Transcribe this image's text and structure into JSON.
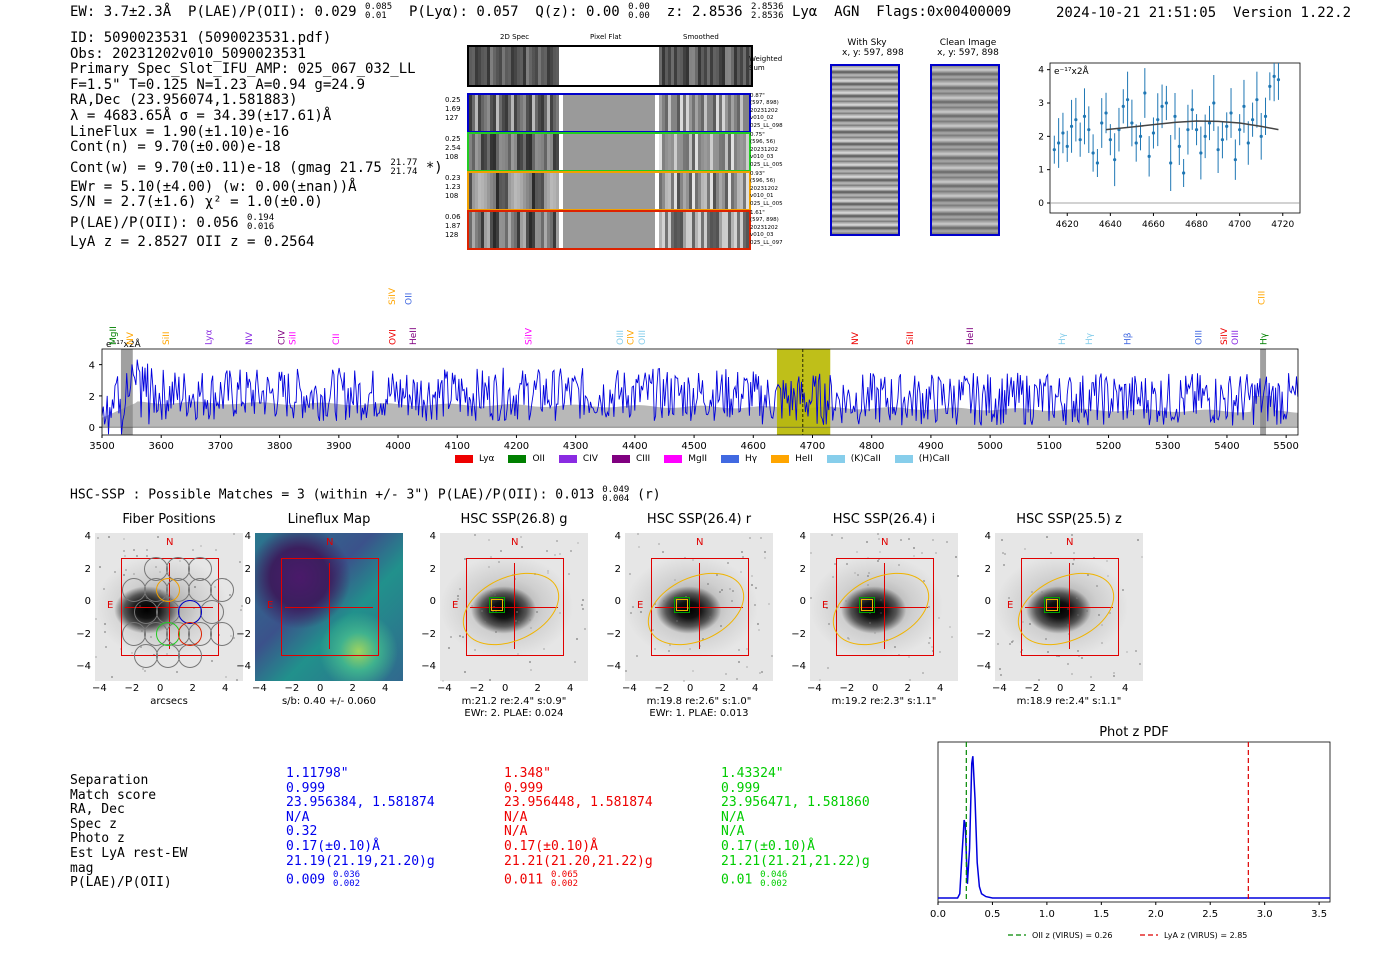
{
  "header": {
    "ew": "EW: 3.7±2.3Å",
    "plae_label": "P(LAE)/P(OII): 0.029",
    "plae_hi": "0.085",
    "plae_lo": "0.01",
    "plya": "P(Lyα): 0.057",
    "qz_label": "Q(z): 0.00",
    "qz_hi": "0.00",
    "qz_lo": "0.00",
    "z_label": "z: 2.8536",
    "z_hi": "2.8536",
    "z_lo": "2.8536",
    "line": "Lyα",
    "agn": "AGN",
    "flags": "Flags:0x00400009",
    "timestamp": "2024-10-21 21:51:05",
    "version": "Version 1.22.2"
  },
  "info": {
    "id": "ID: 5090023531 (5090023531.pdf)",
    "obs": "Obs: 20231202v010_5090023531",
    "primary": "Primary Spec_Slot_IFU_AMP: 025_067_032_LL",
    "params": "F=1.5\"  T=0.125  N=1.23  A=0.94  g=24.9",
    "radec": "RA,Dec (23.956074,1.581883)",
    "lambda_sigma": "λ = 4683.65Å  σ = 34.39(±17.61)Å",
    "lineflux": "LineFlux = 1.90(±1.10)e-16",
    "contn": "Cont(n) = 9.70(±0.00)e-18",
    "contw": "Cont(w) = 9.70(±0.11)e-18 (gmag 21.75",
    "contw_hi": "21.77",
    "contw_lo": "21.74",
    "contw_end": "*)",
    "ewr": "EWr = 5.10(±4.00) (w: 0.00(±nan))Å",
    "sn": "S/N = 2.7(±1.6)  χ² = 1.0(±0.0)",
    "plae": "P(LAE)/P(OII): 0.056",
    "plae_hi": "0.194",
    "plae_lo": "0.016",
    "z": "LyA z = 2.8527  OII z = 0.2564"
  },
  "cutouts": {
    "col_2d": "2D Spec",
    "col_flat": "Pixel Flat",
    "col_smooth": "Smoothed",
    "weighted_sum": "Weighted Sum",
    "rows": [
      {
        "l1": "0.25",
        "l2": "1.69",
        "l3": "127",
        "r1": "0.87\"",
        "r2": "(597, 898)",
        "r3": "20231202",
        "r4": "v010_02",
        "r5": "025_LL_098",
        "color": "#0000cc"
      },
      {
        "l1": "0.25",
        "l2": "2.54",
        "l3": "108",
        "r1": "0.75\"",
        "r2": "(596, 56)",
        "r3": "20231202",
        "r4": "v010_03",
        "r5": "025_LL_005",
        "color": "#22cc22"
      },
      {
        "l1": "0.23",
        "l2": "1.23",
        "l3": "108",
        "r1": "0.93\"",
        "r2": "(596, 56)",
        "r3": "20231202",
        "r4": "v010_01",
        "r5": "025_LL_005",
        "color": "#f0a000"
      },
      {
        "l1": "0.06",
        "l2": "1.87",
        "l3": "128",
        "r1": "1.61\"",
        "r2": "(597, 898)",
        "r3": "20231202",
        "r4": "v010_03",
        "r5": "025_LL_097",
        "color": "#dd2200"
      }
    ]
  },
  "sky": {
    "with_sky_title": "With Sky",
    "with_sky_xy": "x, y: 597, 898",
    "clean_title": "Clean Image",
    "clean_xy": "x, y: 597, 898"
  },
  "zoom_chart": {
    "unit": "e⁻¹⁷x2Å"
  },
  "spectrum": {
    "unit": "e⁻¹⁷x2Å",
    "legend": [
      {
        "name": "Lyα",
        "color": "#ee0000"
      },
      {
        "name": "OII",
        "color": "#008000"
      },
      {
        "name": "CIV",
        "color": "#8a2be2"
      },
      {
        "name": "CIII",
        "color": "#800080"
      },
      {
        "name": "MgII",
        "color": "#ff00ff"
      },
      {
        "name": "Hγ",
        "color": "#4169e1"
      },
      {
        "name": "HeII",
        "color": "#ffa500"
      },
      {
        "name": "(K)CaII",
        "color": "#87ceeb"
      },
      {
        "name": "(H)CaII",
        "color": "#87ceeb"
      }
    ],
    "line_labels": [
      {
        "t": "MgII",
        "w": 3519,
        "c": "#008000",
        "row": 1
      },
      {
        "t": "NV",
        "w": 3547,
        "c": "#ffa500",
        "row": 1
      },
      {
        "t": "SiII",
        "w": 3608,
        "c": "#ffa500",
        "row": 1
      },
      {
        "t": "Lyα",
        "w": 3680,
        "c": "#8a2be2",
        "row": 1
      },
      {
        "t": "NV",
        "w": 3748,
        "c": "#8a2be2",
        "row": 1
      },
      {
        "t": "CIV",
        "w": 3803,
        "c": "#800080",
        "row": 1
      },
      {
        "t": "SiII",
        "w": 3822,
        "c": "#ff00ff",
        "row": 1
      },
      {
        "t": "CII",
        "w": 3895,
        "c": "#ff00ff",
        "row": 1
      },
      {
        "t": "OVI",
        "w": 3991,
        "c": "#ee0000",
        "row": 1
      },
      {
        "t": "HeII",
        "w": 4025,
        "c": "#800080",
        "row": 1
      },
      {
        "t": "SiIV",
        "w": 3990,
        "c": "#ffa500",
        "row": 0
      },
      {
        "t": "OII",
        "w": 4018,
        "c": "#4169e1",
        "row": 0
      },
      {
        "t": "SiIV",
        "w": 4220,
        "c": "#ff00ff",
        "row": 1
      },
      {
        "t": "OIII",
        "w": 4375,
        "c": "#87ceeb",
        "row": 1
      },
      {
        "t": "CIV",
        "w": 4393,
        "c": "#ffa500",
        "row": 1
      },
      {
        "t": "OIII",
        "w": 4412,
        "c": "#87ceeb",
        "row": 1
      },
      {
        "t": "NV",
        "w": 4772,
        "c": "#ee0000",
        "row": 1
      },
      {
        "t": "SiII",
        "w": 4865,
        "c": "#ee0000",
        "row": 1
      },
      {
        "t": "HeII",
        "w": 4966,
        "c": "#800080",
        "row": 1
      },
      {
        "t": "Hγ",
        "w": 5121,
        "c": "#87ceeb",
        "row": 1
      },
      {
        "t": "Hγ",
        "w": 5167,
        "c": "#87ceeb",
        "row": 1
      },
      {
        "t": "Hβ",
        "w": 5232,
        "c": "#4169e1",
        "row": 1
      },
      {
        "t": "OIII",
        "w": 5352,
        "c": "#4169e1",
        "row": 1
      },
      {
        "t": "SiIV",
        "w": 5395,
        "c": "#ee0000",
        "row": 1
      },
      {
        "t": "OIII",
        "w": 5414,
        "c": "#8a2be2",
        "row": 1
      },
      {
        "t": "Hγ",
        "w": 5462,
        "c": "#008000",
        "row": 1
      },
      {
        "t": "CIII",
        "w": 5458,
        "c": "#ffa500",
        "row": 0
      }
    ]
  },
  "hsc": {
    "header": "HSC-SSP : Possible Matches = 3 (within +/- 3\")  P(LAE)/P(OII): 0.013",
    "header_hi": "0.049",
    "header_lo": "0.004",
    "header_end": "(r)",
    "panels": [
      {
        "title": "Fiber Positions",
        "sub1": "arcsecs",
        "sub2": ""
      },
      {
        "title": "Lineflux Map",
        "sub1": "s/b: 0.40 +/- 0.060",
        "sub2": ""
      },
      {
        "title": "HSC SSP(26.8) g",
        "sub1": "m:21.2  re:2.4\"  s:0.9\"",
        "sub2": "EWr: 2. PLAE: 0.024"
      },
      {
        "title": "HSC SSP(26.4) r",
        "sub1": "m:19.8  re:2.6\"  s:1.0\"",
        "sub2": "EWr: 1. PLAE: 0.013"
      },
      {
        "title": "HSC SSP(26.4) i",
        "sub1": "m:19.2  re:2.3\"  s:1.1\"",
        "sub2": ""
      },
      {
        "title": "HSC SSP(25.5) z",
        "sub1": "m:18.9  re:2.4\"  s:1.1\"",
        "sub2": ""
      }
    ],
    "north": "N",
    "east": "E",
    "ticks": [
      "4",
      "2",
      "0",
      "−2",
      "−4"
    ],
    "xticks": [
      "−4",
      "−2",
      "0",
      "2",
      "4"
    ]
  },
  "matches": {
    "labels": [
      "Separation",
      "Match score",
      "RA, Dec",
      "Spec z",
      "Photo z",
      "Est LyA rest-EW",
      "mag",
      "P(LAE)/P(OII)"
    ],
    "columns": [
      {
        "color": "#0000ee",
        "sep": "1.11798\"",
        "score": "0.999",
        "radec": "23.956384, 1.581874",
        "specz": "N/A",
        "photoz": "0.32",
        "ew": "0.17(±0.10)Å",
        "mag": "21.19(21.19,21.20)g",
        "plae": "0.009",
        "plae_hi": "0.036",
        "plae_lo": "0.002"
      },
      {
        "color": "#ee0000",
        "sep": "1.348\"",
        "score": "0.999",
        "radec": "23.956448, 1.581874",
        "specz": "N/A",
        "photoz": "N/A",
        "ew": "0.17(±0.10)Å",
        "mag": "21.21(21.20,21.22)g",
        "plae": "0.011",
        "plae_hi": "0.065",
        "plae_lo": "0.002"
      },
      {
        "color": "#00cc00",
        "sep": "1.43324\"",
        "score": "0.999",
        "radec": "23.956471, 1.581860",
        "specz": "N/A",
        "photoz": "N/A",
        "ew": "0.17(±0.10)Å",
        "mag": "21.21(21.21,21.22)g",
        "plae": "0.01",
        "plae_hi": "0.046",
        "plae_lo": "0.002"
      }
    ]
  },
  "chart_data": [
    {
      "type": "line",
      "title": "",
      "xlabel": "",
      "ylabel": "e⁻¹⁷x2Å",
      "xlim": [
        3500,
        5520
      ],
      "ylim": [
        -0.5,
        5.0
      ],
      "xticks": [
        3500,
        3600,
        3700,
        3800,
        3900,
        4000,
        4100,
        4200,
        4300,
        4400,
        4500,
        4600,
        4700,
        4800,
        4900,
        5000,
        5100,
        5200,
        5300,
        5400,
        5500
      ],
      "yticks": [
        0,
        2,
        4
      ],
      "highlight": [
        4640,
        4730
      ],
      "line_center": 4683.65,
      "series": [
        {
          "name": "spectrum",
          "color": "#0000dd"
        },
        {
          "name": "error",
          "color": "#aaaaaa"
        }
      ]
    },
    {
      "type": "scatter",
      "title": "",
      "xlim": [
        4612,
        4728
      ],
      "ylim": [
        -0.3,
        4.2
      ],
      "xticks": [
        4620,
        4640,
        4660,
        4680,
        4700,
        4720
      ],
      "yticks": [
        0,
        1,
        2,
        3,
        4
      ],
      "x": [
        4614,
        4616,
        4618,
        4620,
        4622,
        4624,
        4626,
        4628,
        4630,
        4632,
        4634,
        4636,
        4638,
        4640,
        4642,
        4644,
        4646,
        4648,
        4650,
        4652,
        4654,
        4656,
        4658,
        4660,
        4662,
        4664,
        4666,
        4668,
        4670,
        4672,
        4674,
        4676,
        4678,
        4680,
        4682,
        4684,
        4686,
        4688,
        4690,
        4692,
        4694,
        4696,
        4698,
        4700,
        4702,
        4704,
        4706,
        4708,
        4710,
        4712,
        4714,
        4716,
        4718
      ],
      "y": [
        1.6,
        1.8,
        2.1,
        1.7,
        2.3,
        2.5,
        1.9,
        2.6,
        2.2,
        1.5,
        1.2,
        2.4,
        2.7,
        1.9,
        1.3,
        2.2,
        2.9,
        3.1,
        2.4,
        1.8,
        2.0,
        3.3,
        1.4,
        2.1,
        2.5,
        2.9,
        3.0,
        1.2,
        2.6,
        1.7,
        0.9,
        2.2,
        2.8,
        2.2,
        1.5,
        2.0,
        2.4,
        3.0,
        1.6,
        1.9,
        2.3,
        2.7,
        1.3,
        2.2,
        2.9,
        1.8,
        2.5,
        3.1,
        2.0,
        2.6,
        3.5,
        3.8,
        3.7
      ],
      "err": [
        0.7
      ],
      "fit": {
        "name": "gaussian fit",
        "color": "#444444",
        "x": [
          4638,
          4650,
          4660,
          4670,
          4680,
          4690,
          4700,
          4710,
          4718
        ],
        "y": [
          2.2,
          2.28,
          2.35,
          2.42,
          2.46,
          2.45,
          2.4,
          2.3,
          2.2
        ]
      }
    },
    {
      "type": "line",
      "title": "Phot z PDF",
      "xlim": [
        0.0,
        3.6
      ],
      "ylim": [
        0,
        1.1
      ],
      "xticks": [
        0.0,
        0.5,
        1.0,
        1.5,
        2.0,
        2.5,
        3.0,
        3.5
      ],
      "x": [
        0.0,
        0.18,
        0.2,
        0.22,
        0.24,
        0.25,
        0.27,
        0.29,
        0.31,
        0.32,
        0.34,
        0.36,
        0.38,
        0.4,
        0.44,
        0.5,
        1.0,
        3.6
      ],
      "y": [
        0.0,
        0.0,
        0.03,
        0.3,
        0.55,
        0.52,
        0.1,
        0.35,
        0.95,
        1.0,
        0.7,
        0.25,
        0.08,
        0.03,
        0.01,
        0.0,
        0.0,
        0.0
      ],
      "vlines": [
        {
          "x": 0.26,
          "color": "#008800",
          "label": "OII z (VIRUS) = 0.26"
        },
        {
          "x": 2.85,
          "color": "#dd0000",
          "label": "LyA z (VIRUS) = 2.85"
        }
      ]
    }
  ]
}
